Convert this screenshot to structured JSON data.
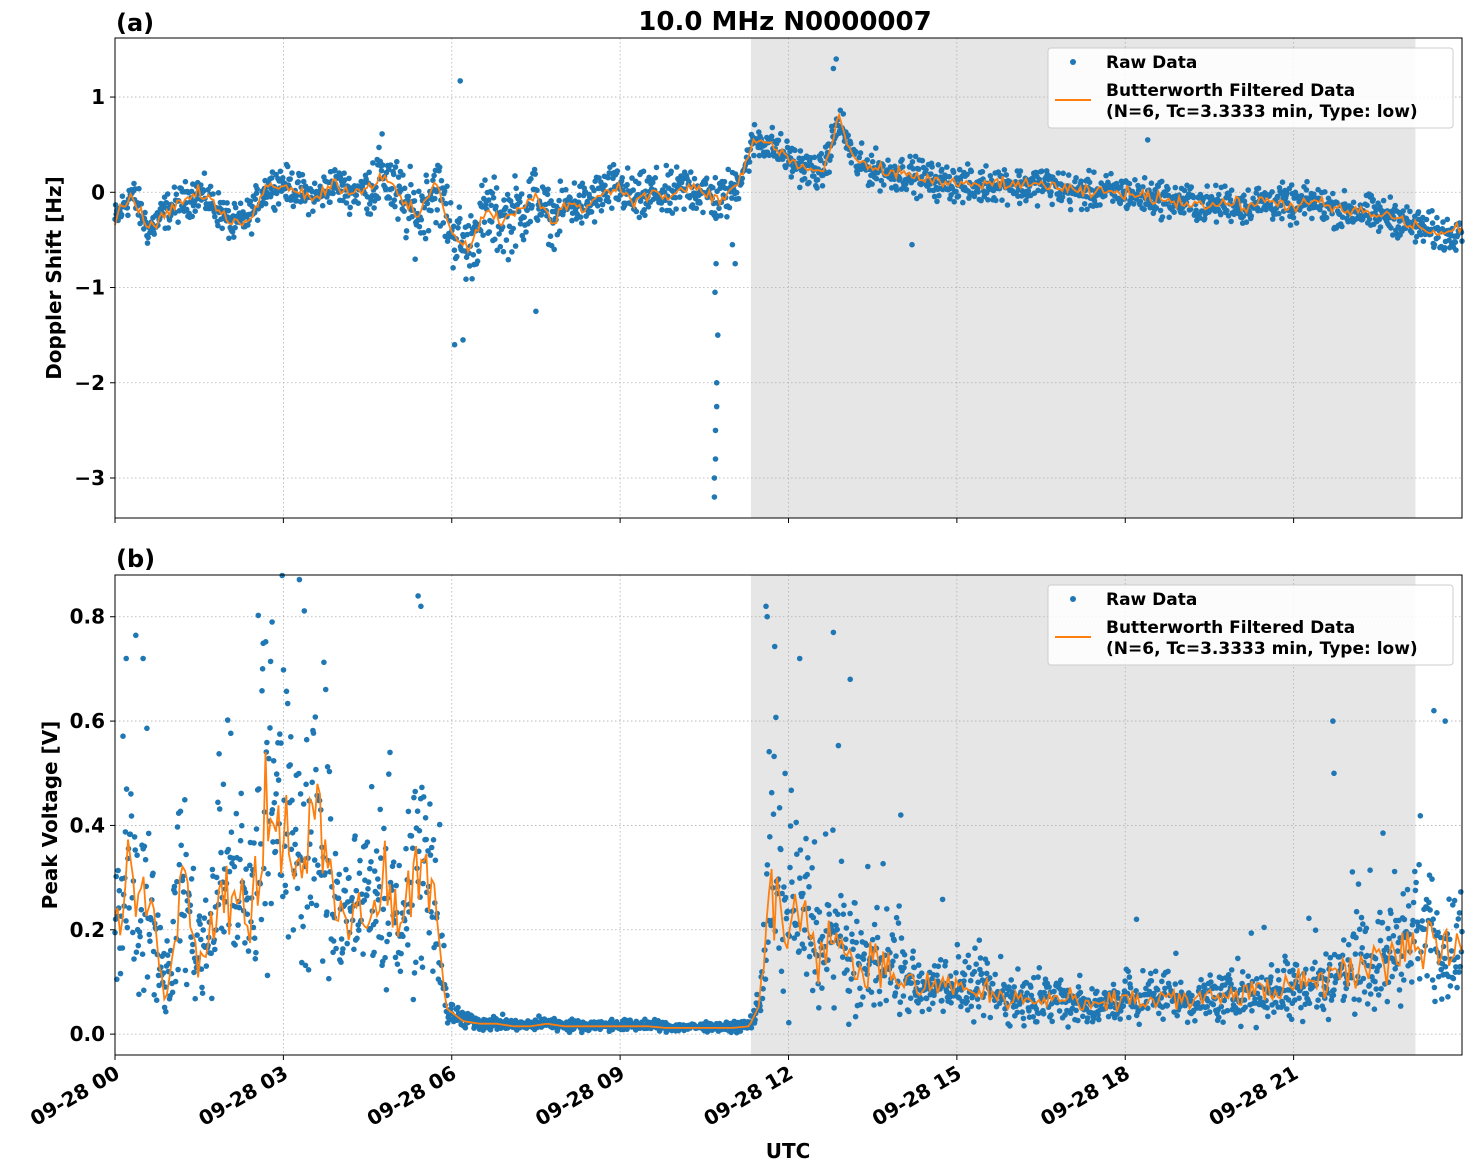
{
  "figure": {
    "title": "10.0 MHz N0000007",
    "xlabel": "UTC",
    "shaded_region_hours": [
      11.33,
      23.17
    ],
    "colors": {
      "raw": "#1f77b4",
      "filtered": "#ff7f0e",
      "shade": "#e6e6e6",
      "grid": "#b0b0b0"
    }
  },
  "chart_data": [
    {
      "type": "scatter",
      "panel": "(a)",
      "title": "10.0 MHz N0000007",
      "xlabel": "",
      "ylabel": "Doppler Shift [Hz]",
      "xlim": [
        0,
        24
      ],
      "ylim": [
        -3.42,
        1.62
      ],
      "xticks": [
        0,
        3,
        6,
        9,
        12,
        15,
        18,
        21
      ],
      "yticks": [
        1,
        0,
        -1,
        -2,
        -3
      ],
      "ytick_labels": [
        "1",
        "0",
        "−1",
        "−2",
        "−3"
      ],
      "legend": {
        "position": "upper-right",
        "entries": [
          "Raw Data",
          "Butterworth Filtered Data",
          "(N=6, Tc=3.3333 min, Type: low)"
        ]
      },
      "series": [
        {
          "name": "Raw Data",
          "style": "points",
          "noise": 0.18,
          "x": [
            0,
            0.3,
            0.6,
            0.9,
            1.2,
            1.5,
            1.8,
            2.1,
            2.4,
            2.7,
            3.0,
            3.3,
            3.6,
            3.9,
            4.2,
            4.5,
            4.8,
            5.1,
            5.4,
            5.7,
            6.0,
            6.3,
            6.6,
            6.9,
            7.2,
            7.5,
            7.8,
            8.1,
            8.4,
            8.7,
            9.0,
            9.3,
            9.6,
            9.9,
            10.2,
            10.5,
            10.8,
            11.1,
            11.4,
            11.7,
            12.0,
            12.3,
            12.6,
            12.9,
            13.2,
            13.5,
            13.8,
            14.1,
            14.4,
            14.7,
            15.0,
            15.3,
            15.6,
            15.9,
            16.2,
            16.5,
            16.8,
            17.1,
            17.4,
            17.7,
            18.0,
            18.3,
            18.6,
            18.9,
            19.2,
            19.5,
            19.8,
            20.1,
            20.4,
            20.7,
            21.0,
            21.3,
            21.6,
            21.9,
            22.2,
            22.5,
            22.8,
            23.1,
            23.4,
            23.7,
            24.0
          ],
          "y": [
            -0.3,
            0.0,
            -0.4,
            -0.2,
            -0.1,
            0.0,
            -0.15,
            -0.35,
            -0.25,
            0.05,
            0.1,
            0.0,
            -0.05,
            0.1,
            0.0,
            0.05,
            0.2,
            -0.1,
            -0.25,
            0.1,
            -0.4,
            -0.6,
            -0.2,
            -0.3,
            -0.2,
            -0.05,
            -0.3,
            -0.1,
            -0.15,
            0.0,
            0.05,
            -0.1,
            0.0,
            -0.05,
            0.05,
            0.0,
            -0.1,
            0.1,
            0.55,
            0.5,
            0.35,
            0.25,
            0.2,
            0.75,
            0.3,
            0.25,
            0.2,
            0.2,
            0.15,
            0.1,
            0.1,
            0.05,
            0.1,
            0.1,
            0.05,
            0.1,
            0.05,
            0.0,
            0.0,
            0.0,
            0.0,
            -0.05,
            -0.05,
            -0.1,
            -0.1,
            -0.15,
            -0.1,
            -0.15,
            -0.1,
            -0.1,
            -0.15,
            -0.1,
            -0.15,
            -0.2,
            -0.2,
            -0.25,
            -0.25,
            -0.35,
            -0.4,
            -0.45,
            -0.35
          ]
        },
        {
          "name": "Butterworth Filtered Data (N=6, Tc=3.3333 min, Type: low)",
          "style": "line",
          "x": [
            0,
            0.3,
            0.6,
            0.9,
            1.2,
            1.5,
            1.8,
            2.1,
            2.4,
            2.7,
            3.0,
            3.3,
            3.6,
            3.9,
            4.2,
            4.5,
            4.8,
            5.1,
            5.4,
            5.7,
            6.0,
            6.3,
            6.6,
            6.9,
            7.2,
            7.5,
            7.8,
            8.1,
            8.4,
            8.7,
            9.0,
            9.3,
            9.6,
            9.9,
            10.2,
            10.5,
            10.8,
            11.1,
            11.4,
            11.7,
            12.0,
            12.3,
            12.6,
            12.9,
            13.2,
            13.5,
            13.8,
            14.1,
            14.4,
            14.7,
            15.0,
            15.3,
            15.6,
            15.9,
            16.2,
            16.5,
            16.8,
            17.1,
            17.4,
            17.7,
            18.0,
            18.3,
            18.6,
            18.9,
            19.2,
            19.5,
            19.8,
            20.1,
            20.4,
            20.7,
            21.0,
            21.3,
            21.6,
            21.9,
            22.2,
            22.5,
            22.8,
            23.1,
            23.4,
            23.7,
            24.0
          ],
          "y": [
            -0.3,
            0.0,
            -0.4,
            -0.2,
            -0.1,
            0.0,
            -0.15,
            -0.35,
            -0.25,
            0.05,
            0.1,
            0.0,
            -0.05,
            0.1,
            0.0,
            0.05,
            0.2,
            -0.1,
            -0.25,
            0.1,
            -0.4,
            -0.6,
            -0.2,
            -0.3,
            -0.2,
            -0.05,
            -0.3,
            -0.1,
            -0.15,
            0.0,
            0.05,
            -0.1,
            0.0,
            -0.05,
            0.05,
            0.0,
            -0.1,
            0.1,
            0.55,
            0.5,
            0.35,
            0.25,
            0.2,
            0.75,
            0.3,
            0.25,
            0.2,
            0.2,
            0.15,
            0.1,
            0.1,
            0.05,
            0.1,
            0.1,
            0.05,
            0.1,
            0.05,
            0.0,
            0.0,
            0.0,
            0.0,
            -0.05,
            -0.05,
            -0.1,
            -0.1,
            -0.15,
            -0.1,
            -0.15,
            -0.1,
            -0.1,
            -0.15,
            -0.1,
            -0.15,
            -0.2,
            -0.2,
            -0.25,
            -0.25,
            -0.35,
            -0.4,
            -0.45,
            -0.35
          ]
        }
      ],
      "outliers": {
        "x": [
          10.68,
          10.68,
          10.7,
          10.7,
          10.72,
          10.72,
          10.74,
          10.69,
          10.71,
          7.5,
          6.05,
          6.2,
          6.15,
          14.2,
          18.4,
          12.85,
          12.8,
          11.05,
          11.0
        ],
        "y": [
          -3.2,
          -3.0,
          -2.8,
          -2.5,
          -2.25,
          -2.0,
          -1.5,
          -1.05,
          -0.75,
          -1.25,
          -1.6,
          -1.55,
          1.17,
          -0.55,
          0.55,
          1.4,
          1.3,
          -0.75,
          -0.55
        ]
      }
    },
    {
      "type": "scatter",
      "panel": "(b)",
      "title": "",
      "xlabel": "UTC",
      "ylabel": "Peak Voltage [V]",
      "xlim": [
        0,
        24
      ],
      "ylim": [
        -0.04,
        0.88
      ],
      "xticks": [
        0,
        3,
        6,
        9,
        12,
        15,
        18,
        21
      ],
      "xtick_labels": [
        "09-28 00",
        "09-28 03",
        "09-28 06",
        "09-28 09",
        "09-28 12",
        "09-28 15",
        "09-28 18",
        "09-28 21"
      ],
      "yticks": [
        0.8,
        0.6,
        0.4,
        0.2,
        0.0
      ],
      "ytick_labels": [
        "0.8",
        "0.6",
        "0.4",
        "0.2",
        "0.0"
      ],
      "legend": {
        "position": "upper-right",
        "entries": [
          "Raw Data",
          "Butterworth Filtered Data",
          "(N=6, Tc=3.3333 min, Type: low)"
        ]
      },
      "series": [
        {
          "name": "Raw Data",
          "style": "points",
          "x": [
            0,
            0.3,
            0.6,
            0.9,
            1.2,
            1.5,
            1.8,
            2.1,
            2.4,
            2.7,
            3.0,
            3.3,
            3.6,
            3.9,
            4.2,
            4.5,
            4.8,
            5.1,
            5.4,
            5.7,
            5.9,
            6.2,
            6.5,
            6.8,
            7.1,
            7.4,
            7.7,
            8.0,
            8.3,
            8.6,
            8.9,
            9.2,
            9.5,
            9.8,
            10.1,
            10.4,
            10.7,
            11.0,
            11.3,
            11.5,
            11.7,
            12.0,
            12.3,
            12.6,
            12.9,
            13.2,
            13.5,
            13.8,
            14.1,
            14.4,
            14.7,
            15.0,
            15.3,
            15.6,
            15.9,
            16.2,
            16.5,
            16.8,
            17.1,
            17.4,
            17.7,
            18.0,
            18.3,
            18.6,
            18.9,
            19.2,
            19.5,
            19.8,
            20.1,
            20.4,
            20.7,
            21.0,
            21.3,
            21.6,
            21.9,
            22.2,
            22.5,
            22.8,
            23.1,
            23.4,
            23.7,
            24.0
          ],
          "y": [
            0.2,
            0.3,
            0.25,
            0.08,
            0.3,
            0.15,
            0.25,
            0.3,
            0.2,
            0.45,
            0.4,
            0.35,
            0.4,
            0.25,
            0.2,
            0.25,
            0.3,
            0.2,
            0.35,
            0.25,
            0.05,
            0.025,
            0.02,
            0.02,
            0.015,
            0.015,
            0.02,
            0.015,
            0.015,
            0.015,
            0.015,
            0.015,
            0.015,
            0.012,
            0.012,
            0.012,
            0.012,
            0.012,
            0.015,
            0.06,
            0.3,
            0.2,
            0.25,
            0.15,
            0.2,
            0.12,
            0.14,
            0.12,
            0.1,
            0.08,
            0.1,
            0.09,
            0.08,
            0.08,
            0.06,
            0.07,
            0.06,
            0.07,
            0.06,
            0.05,
            0.06,
            0.07,
            0.06,
            0.07,
            0.07,
            0.06,
            0.07,
            0.07,
            0.08,
            0.08,
            0.08,
            0.1,
            0.09,
            0.1,
            0.12,
            0.13,
            0.14,
            0.16,
            0.18,
            0.2,
            0.16,
            0.17
          ]
        },
        {
          "name": "Butterworth Filtered Data (N=6, Tc=3.3333 min, Type: low)",
          "style": "line",
          "x": [
            0,
            0.3,
            0.6,
            0.9,
            1.2,
            1.5,
            1.8,
            2.1,
            2.4,
            2.7,
            3.0,
            3.3,
            3.6,
            3.9,
            4.2,
            4.5,
            4.8,
            5.1,
            5.4,
            5.7,
            5.9,
            6.2,
            6.5,
            6.8,
            7.1,
            7.4,
            7.7,
            8.0,
            8.3,
            8.6,
            8.9,
            9.2,
            9.5,
            9.8,
            10.1,
            10.4,
            10.7,
            11.0,
            11.3,
            11.5,
            11.7,
            12.0,
            12.3,
            12.6,
            12.9,
            13.2,
            13.5,
            13.8,
            14.1,
            14.4,
            14.7,
            15.0,
            15.3,
            15.6,
            15.9,
            16.2,
            16.5,
            16.8,
            17.1,
            17.4,
            17.7,
            18.0,
            18.3,
            18.6,
            18.9,
            19.2,
            19.5,
            19.8,
            20.1,
            20.4,
            20.7,
            21.0,
            21.3,
            21.6,
            21.9,
            22.2,
            22.5,
            22.8,
            23.1,
            23.4,
            23.7,
            24.0
          ],
          "y": [
            0.2,
            0.3,
            0.25,
            0.08,
            0.3,
            0.15,
            0.25,
            0.3,
            0.2,
            0.45,
            0.4,
            0.35,
            0.4,
            0.25,
            0.2,
            0.25,
            0.3,
            0.2,
            0.35,
            0.25,
            0.05,
            0.025,
            0.02,
            0.02,
            0.015,
            0.015,
            0.02,
            0.015,
            0.015,
            0.015,
            0.015,
            0.015,
            0.015,
            0.012,
            0.012,
            0.012,
            0.012,
            0.012,
            0.015,
            0.06,
            0.3,
            0.2,
            0.25,
            0.15,
            0.2,
            0.12,
            0.14,
            0.12,
            0.1,
            0.08,
            0.1,
            0.09,
            0.08,
            0.08,
            0.06,
            0.07,
            0.06,
            0.07,
            0.06,
            0.05,
            0.06,
            0.07,
            0.06,
            0.07,
            0.07,
            0.06,
            0.07,
            0.07,
            0.08,
            0.08,
            0.08,
            0.1,
            0.09,
            0.1,
            0.12,
            0.13,
            0.14,
            0.16,
            0.18,
            0.2,
            0.16,
            0.17
          ]
        }
      ],
      "outliers": {
        "x": [
          5.4,
          5.45,
          11.6,
          11.62,
          2.8,
          12.8,
          12.2,
          13.1,
          14.0,
          18.2,
          21.7,
          21.72,
          23.5,
          23.7,
          0.2,
          0.5
        ],
        "y": [
          0.84,
          0.82,
          0.82,
          0.8,
          0.79,
          0.77,
          0.72,
          0.68,
          0.42,
          0.22,
          0.6,
          0.5,
          0.62,
          0.6,
          0.72,
          0.72
        ]
      }
    }
  ]
}
